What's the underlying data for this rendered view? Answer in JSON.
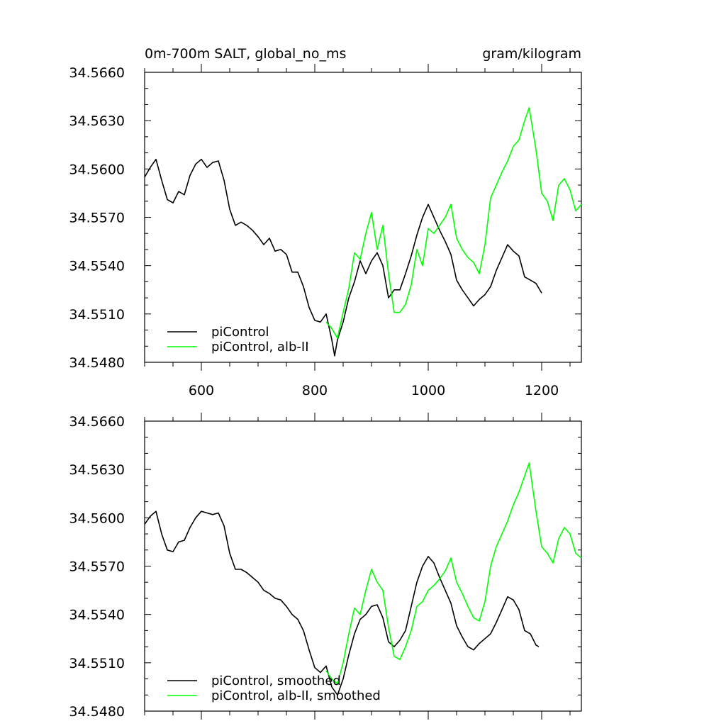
{
  "figure": {
    "left_title": "0m-700m SALT, global_no_ms",
    "right_title": "gram/kilogram"
  },
  "chart_data": [
    {
      "type": "line",
      "panel": "top",
      "title": "0m-700m SALT, global_no_ms",
      "units": "gram/kilogram",
      "xlim": [
        500,
        1270
      ],
      "ylim": [
        34.548,
        34.566
      ],
      "xticks": [
        600,
        800,
        1000,
        1200
      ],
      "xtick_labels": [
        "600",
        "800",
        "1000",
        "1200"
      ],
      "yticks": [
        34.548,
        34.551,
        34.554,
        34.557,
        34.56,
        34.563,
        34.566
      ],
      "ytick_labels": [
        "34.5480",
        "34.5510",
        "34.5540",
        "34.5570",
        "34.5600",
        "34.5630",
        "34.5660"
      ],
      "legend_position": "bottom-left",
      "series": [
        {
          "name": "piControl",
          "color": "#000000",
          "x": [
            500,
            510,
            520,
            530,
            540,
            550,
            560,
            570,
            580,
            590,
            600,
            610,
            620,
            630,
            640,
            650,
            660,
            670,
            680,
            690,
            700,
            710,
            720,
            730,
            740,
            750,
            760,
            770,
            780,
            790,
            800,
            810,
            820,
            830,
            835,
            840,
            850,
            860,
            870,
            880,
            890,
            900,
            910,
            920,
            930,
            940,
            950,
            960,
            970,
            980,
            990,
            1000,
            1010,
            1020,
            1030,
            1040,
            1050,
            1060,
            1070,
            1080,
            1090,
            1100,
            1110,
            1120,
            1130,
            1140,
            1150,
            1160,
            1170,
            1180,
            1190,
            1200
          ],
          "y": [
            34.5595,
            34.5601,
            34.5606,
            34.5593,
            34.5581,
            34.5579,
            34.5586,
            34.5584,
            34.5596,
            34.5603,
            34.5606,
            34.5601,
            34.5604,
            34.5605,
            34.5593,
            34.5575,
            34.5565,
            34.5567,
            34.5565,
            34.5562,
            34.5558,
            34.5553,
            34.5557,
            34.5549,
            34.555,
            34.5547,
            34.5536,
            34.5536,
            34.5527,
            34.5514,
            34.5506,
            34.5505,
            34.551,
            34.5494,
            34.5484,
            34.5494,
            34.5505,
            34.552,
            34.553,
            34.5543,
            34.5535,
            34.5543,
            34.5548,
            34.554,
            34.552,
            34.5525,
            34.5525,
            34.5535,
            34.5546,
            34.5559,
            34.557,
            34.5578,
            34.557,
            34.5562,
            34.5555,
            34.5547,
            34.5531,
            34.5525,
            34.552,
            34.5515,
            34.5519,
            34.5522,
            34.5527,
            34.5537,
            34.5545,
            34.5553,
            34.5549,
            34.5546,
            34.5533,
            34.5531,
            34.5529,
            34.5523
          ]
        },
        {
          "name": "piControl, alb-II",
          "color": "#00ff00",
          "x": [
            820,
            830,
            840,
            850,
            860,
            870,
            880,
            890,
            900,
            910,
            920,
            930,
            940,
            950,
            960,
            970,
            980,
            990,
            1000,
            1010,
            1020,
            1030,
            1040,
            1050,
            1060,
            1070,
            1080,
            1090,
            1100,
            1110,
            1120,
            1130,
            1140,
            1150,
            1160,
            1170,
            1178,
            1190,
            1200,
            1210,
            1220,
            1230,
            1240,
            1250,
            1260,
            1270
          ],
          "y": [
            34.5505,
            34.5501,
            34.5495,
            34.5511,
            34.5526,
            34.5548,
            34.5544,
            34.556,
            34.5573,
            34.555,
            34.5565,
            34.5535,
            34.5511,
            34.5511,
            34.5516,
            34.5528,
            34.555,
            34.554,
            34.5563,
            34.556,
            34.5565,
            34.557,
            34.5578,
            34.5557,
            34.555,
            34.5545,
            34.5542,
            34.5535,
            34.5553,
            34.5582,
            34.559,
            34.5598,
            34.5605,
            34.5614,
            34.5618,
            34.563,
            34.5638,
            34.5612,
            34.5585,
            34.558,
            34.5568,
            34.559,
            34.5594,
            34.5587,
            34.5574,
            34.5578
          ]
        }
      ]
    },
    {
      "type": "line",
      "panel": "bottom",
      "xlim": [
        500,
        1270
      ],
      "ylim": [
        34.548,
        34.566
      ],
      "xticks": [
        600,
        800,
        1000,
        1200
      ],
      "yticks": [
        34.548,
        34.551,
        34.554,
        34.557,
        34.56,
        34.563,
        34.566
      ],
      "ytick_labels": [
        "34.5480",
        "34.5510",
        "34.5540",
        "34.5570",
        "34.5600",
        "34.5630",
        "34.5660"
      ],
      "legend_position": "bottom-left",
      "series": [
        {
          "name": "piControl, smoothed",
          "color": "#000000",
          "x": [
            500,
            510,
            520,
            530,
            540,
            550,
            560,
            570,
            580,
            590,
            600,
            610,
            620,
            630,
            640,
            650,
            660,
            670,
            680,
            690,
            700,
            710,
            720,
            730,
            740,
            750,
            760,
            770,
            780,
            790,
            800,
            810,
            820,
            830,
            840,
            850,
            860,
            870,
            880,
            890,
            900,
            910,
            920,
            930,
            940,
            950,
            960,
            970,
            980,
            990,
            1000,
            1010,
            1020,
            1030,
            1040,
            1050,
            1060,
            1070,
            1080,
            1090,
            1100,
            1110,
            1120,
            1130,
            1140,
            1150,
            1160,
            1170,
            1180,
            1190,
            1195
          ],
          "y": [
            34.5596,
            34.5601,
            34.5604,
            34.559,
            34.558,
            34.5579,
            34.5585,
            34.5586,
            34.5594,
            34.56,
            34.5604,
            34.5603,
            34.5602,
            34.5603,
            34.5595,
            34.5578,
            34.5568,
            34.5568,
            34.5566,
            34.5563,
            34.556,
            34.5555,
            34.5553,
            34.555,
            34.5549,
            34.5545,
            34.554,
            34.5537,
            34.553,
            34.5518,
            34.5507,
            34.5504,
            34.5508,
            34.5495,
            34.549,
            34.55,
            34.5515,
            34.5528,
            34.5537,
            34.554,
            34.5545,
            34.5546,
            34.5538,
            34.5523,
            34.552,
            34.5524,
            34.553,
            34.5545,
            34.556,
            34.557,
            34.5576,
            34.5572,
            34.5563,
            34.5555,
            34.5547,
            34.5533,
            34.5526,
            34.552,
            34.5518,
            34.5522,
            34.5525,
            34.5528,
            34.5535,
            34.5543,
            34.5551,
            34.5549,
            34.5543,
            34.553,
            34.5528,
            34.5521,
            34.552
          ]
        },
        {
          "name": "piControl, alb-II, smoothed",
          "color": "#00ff00",
          "x": [
            820,
            830,
            840,
            850,
            860,
            870,
            880,
            890,
            900,
            910,
            920,
            930,
            940,
            950,
            960,
            970,
            980,
            990,
            1000,
            1010,
            1020,
            1030,
            1040,
            1050,
            1060,
            1070,
            1080,
            1090,
            1100,
            1110,
            1120,
            1130,
            1140,
            1150,
            1160,
            1170,
            1178,
            1190,
            1200,
            1210,
            1220,
            1230,
            1240,
            1250,
            1260,
            1270
          ],
          "y": [
            34.5505,
            34.55,
            34.5497,
            34.551,
            34.5528,
            34.5544,
            34.554,
            34.5555,
            34.5568,
            34.556,
            34.5555,
            34.5532,
            34.5514,
            34.5512,
            34.552,
            34.553,
            34.5545,
            34.5548,
            34.5555,
            34.5558,
            34.5562,
            34.5567,
            34.5575,
            34.556,
            34.5553,
            34.5545,
            34.5538,
            34.5536,
            34.5548,
            34.557,
            34.5582,
            34.559,
            34.5598,
            34.5608,
            34.5616,
            34.5626,
            34.5634,
            34.5604,
            34.5582,
            34.5578,
            34.5572,
            34.5587,
            34.5594,
            34.559,
            34.5578,
            34.5575
          ]
        }
      ]
    }
  ]
}
